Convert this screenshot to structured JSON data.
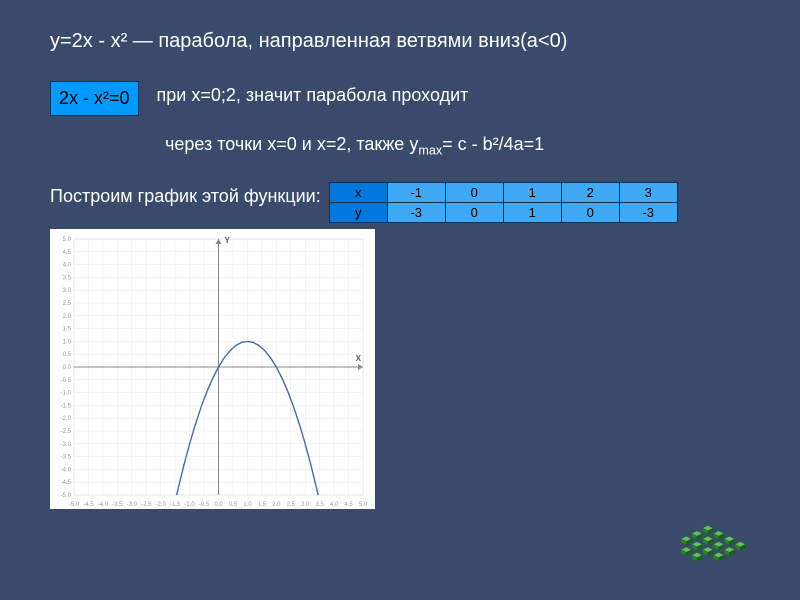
{
  "title": "y=2x - x² — парабола, направленная ветвями вниз(a<0)",
  "equation_box": "2x - x²=0",
  "line1": "при x=0;2, значит парабола проходит",
  "line2_a": "через точки x=0 и x=2, также y",
  "line2_sub": "max",
  "line2_b": "= c - b²/4a=1",
  "plot_label": "Построим график этой функции:",
  "table": {
    "header_cell_bg": "#0077dd",
    "cell_bg": "#3fa9f5",
    "rows": [
      [
        "x",
        "-1",
        "0",
        "1",
        "2",
        "3"
      ],
      [
        "y",
        "-3",
        "0",
        "1",
        "0",
        "-3"
      ]
    ]
  },
  "chart": {
    "type": "line",
    "background_color": "#ffffff",
    "grid_color": "#e8e8e8",
    "axis_color": "#888888",
    "curve_color": "#4a6aa5",
    "curve_width": 1.4,
    "xlim": [
      -5,
      5
    ],
    "ylim": [
      -5,
      5
    ],
    "tick_step": 0.5,
    "label_color": "#999999",
    "label_fontsize": 6,
    "axis_label_x": "X",
    "axis_label_y": "Y",
    "curve_points": [
      [
        -1.45,
        -5
      ],
      [
        -1.2,
        -3.84
      ],
      [
        -1,
        -3
      ],
      [
        -0.8,
        -2.24
      ],
      [
        -0.6,
        -1.56
      ],
      [
        -0.4,
        -0.96
      ],
      [
        -0.2,
        -0.44
      ],
      [
        0,
        0
      ],
      [
        0.2,
        0.36
      ],
      [
        0.4,
        0.64
      ],
      [
        0.6,
        0.84
      ],
      [
        0.8,
        0.96
      ],
      [
        1,
        1
      ],
      [
        1.2,
        0.96
      ],
      [
        1.4,
        0.84
      ],
      [
        1.6,
        0.64
      ],
      [
        1.8,
        0.36
      ],
      [
        2,
        0
      ],
      [
        2.2,
        -0.44
      ],
      [
        2.4,
        -0.96
      ],
      [
        2.6,
        -1.56
      ],
      [
        2.8,
        -2.24
      ],
      [
        3,
        -3
      ],
      [
        3.2,
        -3.84
      ],
      [
        3.45,
        -5
      ]
    ]
  },
  "maze": {
    "fill": "#2e7d32",
    "stroke": "#1b5e20",
    "highlight": "#66bb6a"
  }
}
